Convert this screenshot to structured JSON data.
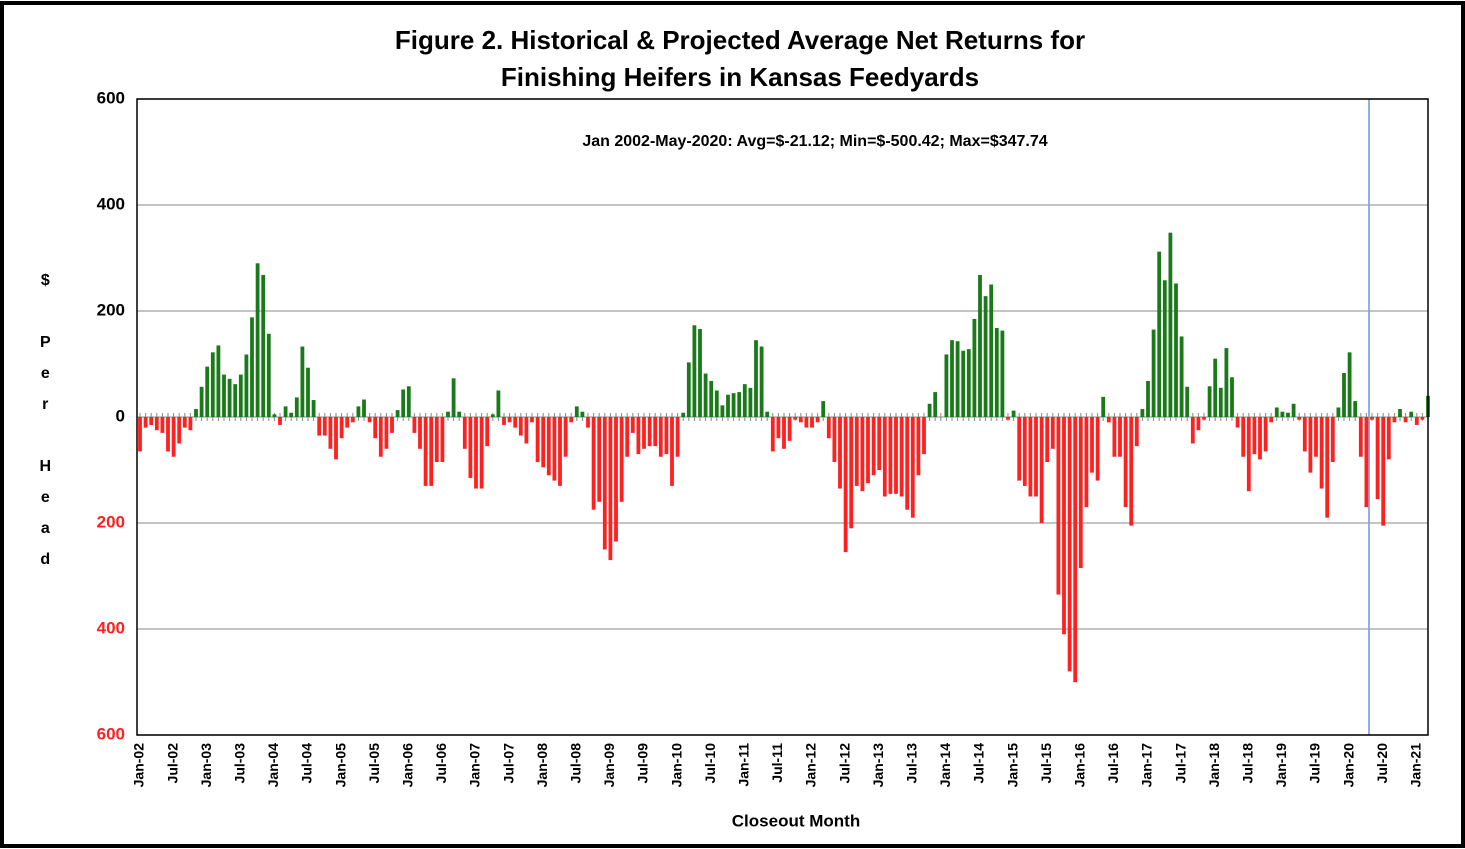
{
  "chart_data": {
    "type": "bar",
    "title": [
      "Figure 2.  Historical & Projected Average Net Returns for",
      "Finishing Heifers in Kansas Feedyards"
    ],
    "annotation": "Jan 2002-May-2020:  Avg=$-21.12; Min=$-500.42; Max=$347.74",
    "xlabel": "Closeout Month",
    "ylabel": "$ Per Head",
    "positive_color": "#1a7a1a",
    "negative_color": "#ff2020",
    "grid": true,
    "ylim": [
      -600,
      600
    ],
    "yticks": [
      {
        "value": -600,
        "label": "600"
      },
      {
        "value": -400,
        "label": "400"
      },
      {
        "value": -200,
        "label": "200"
      },
      0,
      200,
      400,
      600
    ],
    "categories": [
      "Jan-02",
      null,
      null,
      null,
      null,
      null,
      "Jul-02",
      null,
      null,
      null,
      null,
      null,
      "Jan-03",
      null,
      null,
      null,
      null,
      null,
      "Jul-03",
      null,
      null,
      null,
      null,
      null,
      "Jan-04",
      null,
      null,
      null,
      null,
      null,
      "Jul-04",
      null,
      null,
      null,
      null,
      null,
      "Jan-05",
      null,
      null,
      null,
      null,
      null,
      "Jul-05",
      null,
      null,
      null,
      null,
      null,
      "Jan-06",
      null,
      null,
      null,
      null,
      null,
      "Jul-06",
      null,
      null,
      null,
      null,
      null,
      "Jan-07",
      null,
      null,
      null,
      null,
      null,
      "Jul-07",
      null,
      null,
      null,
      null,
      null,
      "Jan-08",
      null,
      null,
      null,
      null,
      null,
      "Jul-08",
      null,
      null,
      null,
      null,
      null,
      "Jan-09",
      null,
      null,
      null,
      null,
      null,
      "Jul-09",
      null,
      null,
      null,
      null,
      null,
      "Jan-10",
      null,
      null,
      null,
      null,
      null,
      "Jul-10",
      null,
      null,
      null,
      null,
      null,
      "Jan-11",
      null,
      null,
      null,
      null,
      null,
      "Jul-11",
      null,
      null,
      null,
      null,
      null,
      "Jan-12",
      null,
      null,
      null,
      null,
      null,
      "Jul-12",
      null,
      null,
      null,
      null,
      null,
      "Jan-13",
      null,
      null,
      null,
      null,
      null,
      "Jul-13",
      null,
      null,
      null,
      null,
      null,
      "Jan-14",
      null,
      null,
      null,
      null,
      null,
      "Jul-14",
      null,
      null,
      null,
      null,
      null,
      "Jan-15",
      null,
      null,
      null,
      null,
      null,
      "Jul-15",
      null,
      null,
      null,
      null,
      null,
      "Jan-16",
      null,
      null,
      null,
      null,
      null,
      "Jul-16",
      null,
      null,
      null,
      null,
      null,
      "Jan-17",
      null,
      null,
      null,
      null,
      null,
      "Jul-17",
      null,
      null,
      null,
      null,
      null,
      "Jan-18",
      null,
      null,
      null,
      null,
      null,
      "Jul-18",
      null,
      null,
      null,
      null,
      null,
      "Jan-19",
      null,
      null,
      null,
      null,
      null,
      "Jul-19",
      null,
      null,
      null,
      null,
      null,
      "Jan-20",
      null,
      null,
      null,
      null,
      null,
      "Jul-20",
      null,
      null,
      null,
      null,
      null,
      "Jan-21",
      null,
      null
    ],
    "values": [
      -65,
      -20,
      -15,
      -25,
      -30,
      -65,
      -75,
      -50,
      -20,
      -25,
      15,
      57,
      95,
      122,
      135,
      80,
      72,
      62,
      80,
      118,
      188,
      290,
      268,
      157,
      5,
      -15,
      20,
      8,
      37,
      133,
      93,
      32,
      -35,
      -35,
      -60,
      -80,
      -40,
      -20,
      -10,
      20,
      33,
      -10,
      -40,
      -75,
      -60,
      -30,
      13,
      52,
      58,
      -30,
      -60,
      -130,
      -130,
      -85,
      -85,
      10,
      73,
      10,
      -60,
      -115,
      -135,
      -135,
      -55,
      5,
      50,
      -15,
      -10,
      -20,
      -35,
      -50,
      -10,
      -85,
      -95,
      -110,
      -120,
      -130,
      -75,
      -10,
      20,
      10,
      -20,
      -175,
      -160,
      -250,
      -270,
      -235,
      -160,
      -75,
      -30,
      -70,
      -60,
      -55,
      -55,
      -75,
      -70,
      -130,
      -75,
      8,
      103,
      173,
      166,
      82,
      68,
      50,
      22,
      42,
      45,
      47,
      62,
      55,
      145,
      133,
      10,
      -65,
      -40,
      -60,
      -45,
      -5,
      -10,
      -20,
      -20,
      -10,
      30,
      -40,
      -85,
      -135,
      -255,
      -210,
      -130,
      -140,
      -125,
      -110,
      -100,
      -150,
      -145,
      -145,
      -150,
      -175,
      -190,
      -110,
      -70,
      25,
      47,
      0,
      118,
      145,
      143,
      125,
      128,
      185,
      268,
      228,
      250,
      168,
      163,
      -5,
      12,
      -120,
      -130,
      -150,
      -150,
      -200,
      -85,
      -60,
      -335,
      -410,
      -480,
      -500.42,
      -285,
      -170,
      -105,
      -120,
      38,
      -10,
      -75,
      -75,
      -170,
      -205,
      -55,
      15,
      68,
      165,
      312,
      258,
      347.74,
      252,
      152,
      57,
      -50,
      -25,
      -5,
      58,
      110,
      55,
      130,
      75,
      -20,
      -75,
      -140,
      -70,
      -80,
      -65,
      -10,
      18,
      10,
      8,
      25,
      -5,
      -65,
      -105,
      -75,
      -135,
      -190,
      -85,
      18,
      83,
      122,
      30,
      -75,
      -170,
      -5,
      -155,
      -205,
      -80,
      -10,
      15,
      -10,
      10,
      -15,
      -5,
      40
    ]
  }
}
